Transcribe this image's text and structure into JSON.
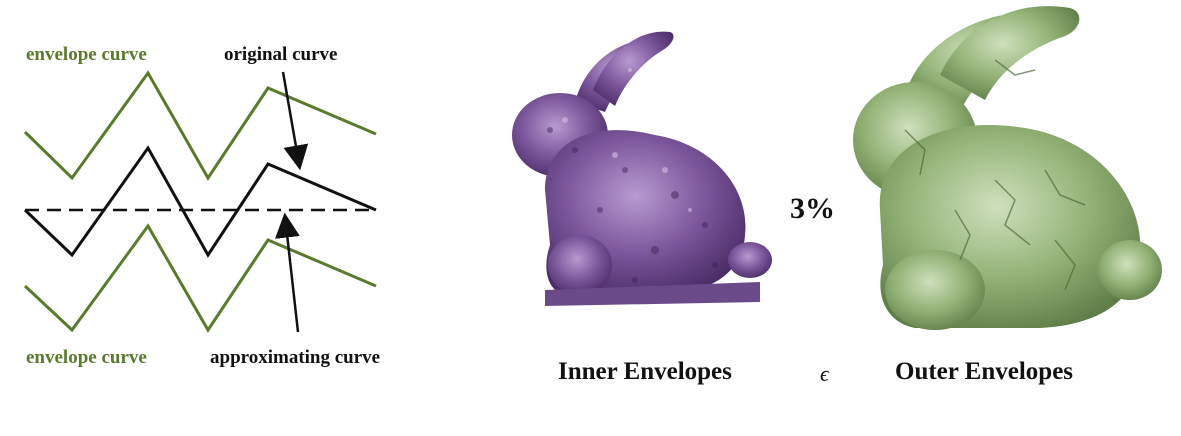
{
  "left_diagram": {
    "top_envelope_label": "envelope curve",
    "bottom_envelope_label": "envelope curve",
    "original_label": "original curve",
    "approximating_label": "approximating curve",
    "envelope_color": "#5a7a2e",
    "curve_color": "#111111"
  },
  "right_figure": {
    "inner_caption": "Inner Envelopes",
    "outer_caption": "Outer Envelopes",
    "epsilon_symbol": "ϵ",
    "percent_label": "3%",
    "inner_color": "#6b4a8a",
    "outer_color": "#8fae72"
  }
}
